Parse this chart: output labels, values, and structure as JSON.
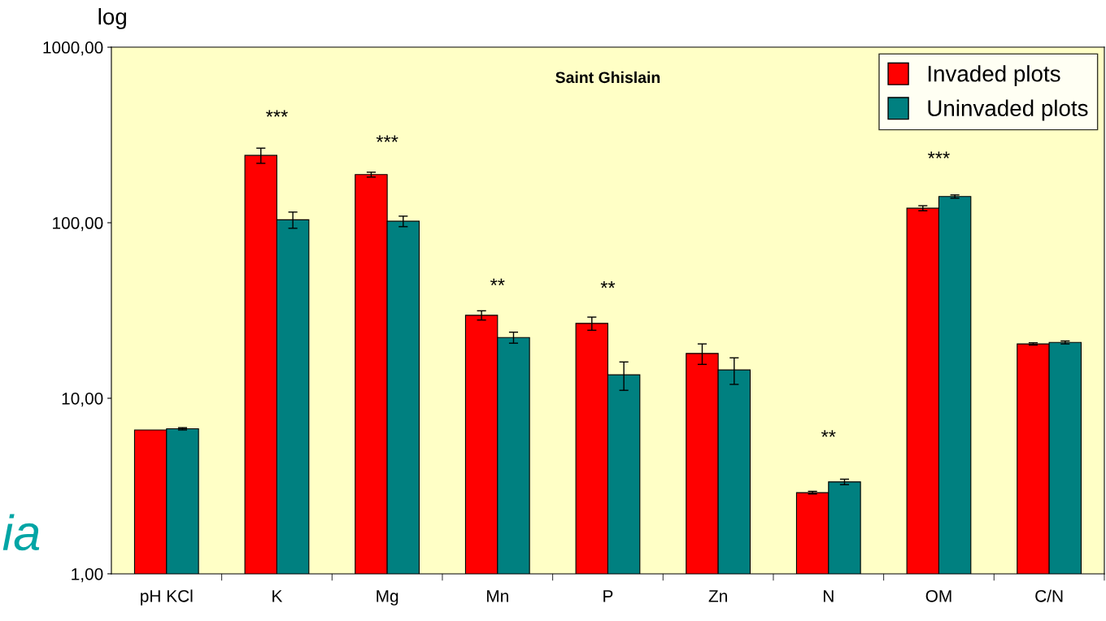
{
  "chart_data": {
    "type": "bar",
    "title": "Saint Ghislain",
    "ylabel": "log",
    "log": true,
    "categories": [
      "pH KCl",
      "K",
      "Mg",
      "Mn",
      "P",
      "Zn",
      "N",
      "OM",
      "C/N"
    ],
    "series": [
      {
        "name": "Invaded plots",
        "color": "#ff0000",
        "values": [
          6.6,
          242,
          188,
          29.7,
          26.7,
          18.0,
          2.9,
          121,
          20.4
        ],
        "errors": [
          null,
          24,
          6,
          1.8,
          2.3,
          2.4,
          0.05,
          4,
          0.3
        ]
      },
      {
        "name": "Uninvaded plots",
        "color": "#008080",
        "values": [
          6.7,
          104,
          102,
          22.2,
          13.6,
          14.5,
          3.34,
          141,
          20.8
        ],
        "errors": [
          0.1,
          11,
          7,
          1.6,
          2.5,
          2.5,
          0.12,
          3,
          0.4
        ]
      }
    ],
    "ylim": [
      1,
      1000
    ],
    "yticks": [
      {
        "value": 1,
        "label": "1,00"
      },
      {
        "value": 10,
        "label": "10,00"
      },
      {
        "value": 100,
        "label": "100,00"
      },
      {
        "value": 1000,
        "label": "1000,00"
      }
    ],
    "grid": false,
    "legend": "top right",
    "annotations": [
      "***",
      "***",
      "**",
      "**",
      "**",
      "***",
      "ia"
    ]
  }
}
